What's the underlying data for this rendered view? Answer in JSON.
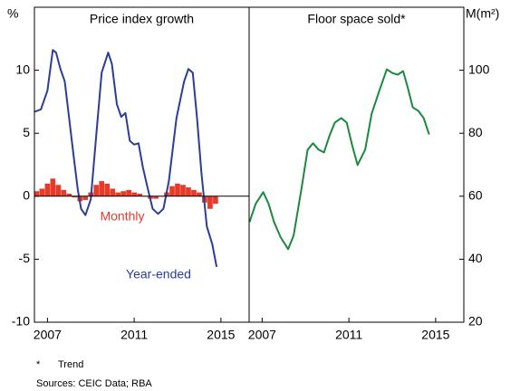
{
  "chart_data": [
    {
      "type": "bar_line",
      "title": "Price index growth",
      "ylabel": "%",
      "y_axis_side": "left",
      "zero_line": true,
      "xlim": [
        2006.4,
        2016.3
      ],
      "xticks": [
        2007,
        2011,
        2015
      ],
      "ylim": [
        -10,
        15
      ],
      "yticks": [
        -10,
        -5,
        0,
        5,
        10
      ],
      "series": [
        {
          "name": "Monthly",
          "kind": "bar",
          "color": "#e63a2b",
          "x": [
            2006.5,
            2006.75,
            2007,
            2007.25,
            2007.5,
            2007.75,
            2008,
            2008.25,
            2008.5,
            2008.75,
            2009,
            2009.25,
            2009.5,
            2009.75,
            2010,
            2010.25,
            2010.5,
            2010.75,
            2011,
            2011.25,
            2011.5,
            2011.75,
            2012,
            2012.25,
            2012.5,
            2012.75,
            2013,
            2013.25,
            2013.5,
            2013.75,
            2014,
            2014.25,
            2014.5,
            2014.75
          ],
          "values": [
            0.4,
            0.6,
            1.0,
            1.4,
            0.9,
            0.5,
            0.2,
            -0.1,
            -0.4,
            -0.3,
            0.3,
            0.9,
            1.2,
            1.0,
            0.6,
            0.3,
            0.4,
            0.5,
            0.3,
            0.2,
            0,
            -0.2,
            -0.2,
            0,
            0.3,
            0.8,
            1.0,
            0.9,
            0.7,
            0.5,
            0.3,
            -0.5,
            -1.0,
            -0.6
          ]
        },
        {
          "name": "Year-ended",
          "kind": "line",
          "color": "#2a3e92",
          "x": [
            2006.41,
            2006.7,
            2007.0,
            2007.25,
            2007.4,
            2007.6,
            2007.8,
            2008.0,
            2008.2,
            2008.4,
            2008.55,
            2008.75,
            2009.0,
            2009.25,
            2009.5,
            2009.8,
            2009.97,
            2010.2,
            2010.4,
            2010.6,
            2010.8,
            2011.0,
            2011.2,
            2011.4,
            2011.6,
            2011.85,
            2012.1,
            2012.35,
            2012.6,
            2012.95,
            2013.3,
            2013.5,
            2013.7,
            2013.9,
            2014.1,
            2014.35,
            2014.6,
            2014.8
          ],
          "values": [
            6.7,
            6.9,
            8.4,
            11.6,
            11.4,
            10.1,
            9.1,
            6.2,
            3.3,
            0.5,
            -1.0,
            -1.5,
            -0.25,
            4.8,
            9.8,
            11.4,
            10.5,
            7.3,
            6.3,
            6.6,
            4.4,
            4.1,
            4.2,
            2.3,
            0.8,
            -1.0,
            -1.4,
            -1.0,
            1.2,
            6.2,
            9.1,
            10.1,
            9.8,
            6.2,
            1.9,
            -2.4,
            -3.8,
            -5.6
          ]
        }
      ]
    },
    {
      "type": "line",
      "title": "Floor space sold*",
      "ylabel": "M(m²)",
      "y_axis_side": "right",
      "zero_line": false,
      "xlim": [
        2006.4,
        2016.3
      ],
      "xticks": [
        2007,
        2011,
        2015
      ],
      "ylim": [
        20,
        120
      ],
      "yticks": [
        20,
        40,
        60,
        80,
        100
      ],
      "series": [
        {
          "kind": "line",
          "color": "#1b8a3e",
          "x": [
            2006.42,
            2006.7,
            2007.05,
            2007.3,
            2007.55,
            2007.85,
            2008.2,
            2008.45,
            2008.8,
            2009.1,
            2009.35,
            2009.6,
            2009.85,
            2010.1,
            2010.35,
            2010.65,
            2010.9,
            2011.15,
            2011.4,
            2011.75,
            2012.05,
            2012.4,
            2012.75,
            2013.0,
            2013.25,
            2013.5,
            2013.7,
            2013.95,
            2014.2,
            2014.45,
            2014.7
          ],
          "values": [
            51.8,
            57.6,
            61.3,
            57.6,
            51.8,
            47,
            43.2,
            47.5,
            61.9,
            74.8,
            76.8,
            74.8,
            73.9,
            79.1,
            83.4,
            84.8,
            83.4,
            76.2,
            69.9,
            74.8,
            86.2,
            93.4,
            100.3,
            99.1,
            98.6,
            99.7,
            94.8,
            88.2,
            87.1,
            84.8,
            79.6
          ]
        }
      ]
    }
  ],
  "notes": [
    "*",
    "Trend",
    "Sources:  CEIC Data; RBA"
  ]
}
